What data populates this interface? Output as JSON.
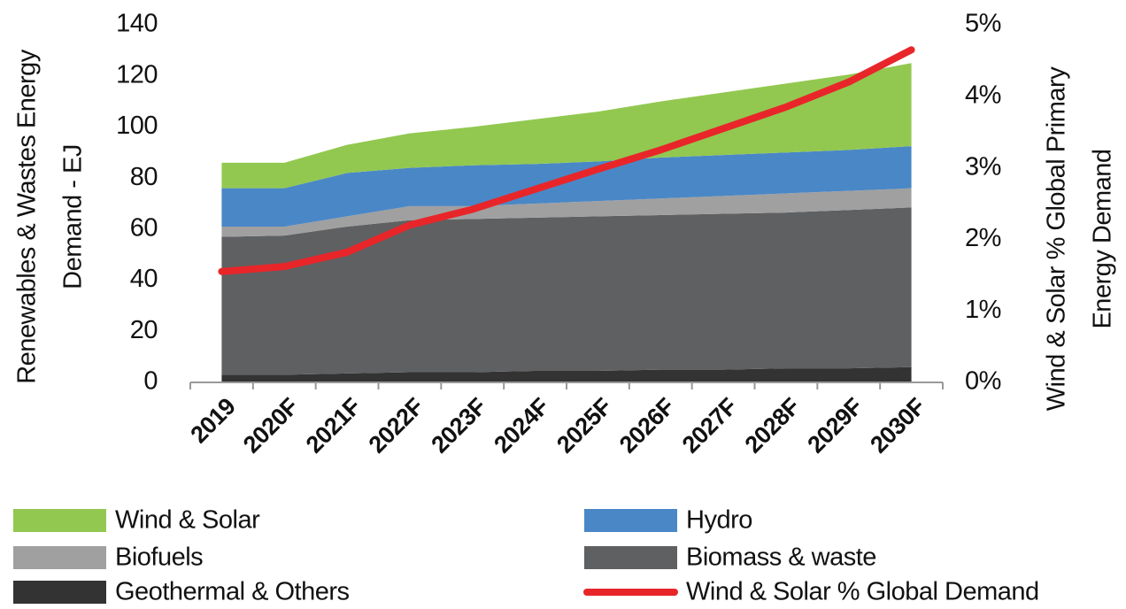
{
  "chart_data": {
    "type": "stacked_area_line",
    "y_label": [
      "Renewables & Wastes Energy",
      "Demand - EJ"
    ],
    "y2_label": [
      "Wind & Solar % Global Primary",
      "Energy Demand"
    ],
    "categories": [
      "2019",
      "2020F",
      "2021F",
      "2022F",
      "2023F",
      "2024F",
      "2025F",
      "2026F",
      "2027F",
      "2028F",
      "2029F",
      "2030F"
    ],
    "series": [
      {
        "name": "Geothermal & Others",
        "color": "#333333",
        "values": [
          3,
          3,
          3.5,
          4,
          4,
          4.5,
          4.5,
          5,
          5,
          5.5,
          5.5,
          6
        ]
      },
      {
        "name": "Biomass & waste",
        "color": "#5f6062",
        "values": [
          54,
          54.5,
          57.5,
          59.5,
          60,
          60,
          60.5,
          60.5,
          61,
          61,
          62,
          62.5
        ]
      },
      {
        "name": "Biofuels",
        "color": "#a0a0a0",
        "values": [
          4,
          3.5,
          4,
          5.5,
          5,
          5.5,
          6,
          6.5,
          7,
          7.5,
          7.5,
          7.5
        ]
      },
      {
        "name": "Hydro",
        "color": "#4a87c6",
        "values": [
          15,
          15,
          17,
          15,
          16,
          15.5,
          15.5,
          16,
          16,
          16,
          16,
          16.5
        ]
      },
      {
        "name": "Wind & Solar",
        "color": "#92c850",
        "values": [
          10,
          10,
          11,
          13.5,
          15,
          17.5,
          19.5,
          22,
          24.5,
          27,
          29.5,
          32.5
        ]
      },
      {
        "name": "Wind & Solar % Global Demand",
        "color": "#e8262a",
        "axis": "y2",
        "values": [
          1.55,
          1.62,
          1.82,
          2.2,
          2.42,
          2.7,
          2.98,
          3.25,
          3.55,
          3.85,
          4.2,
          4.65
        ]
      }
    ],
    "ylim": [
      0,
      140
    ],
    "yticks": [
      0,
      20,
      40,
      60,
      80,
      100,
      120,
      140
    ],
    "y2lim": [
      0,
      5
    ],
    "y2ticks": [
      {
        "value": 0,
        "label": "0%"
      },
      {
        "value": 1,
        "label": "1%"
      },
      {
        "value": 2,
        "label": "2%"
      },
      {
        "value": 3,
        "label": "3%"
      },
      {
        "value": 4,
        "label": "4%"
      },
      {
        "value": 5,
        "label": "5%"
      }
    ],
    "legend": "bottom"
  }
}
